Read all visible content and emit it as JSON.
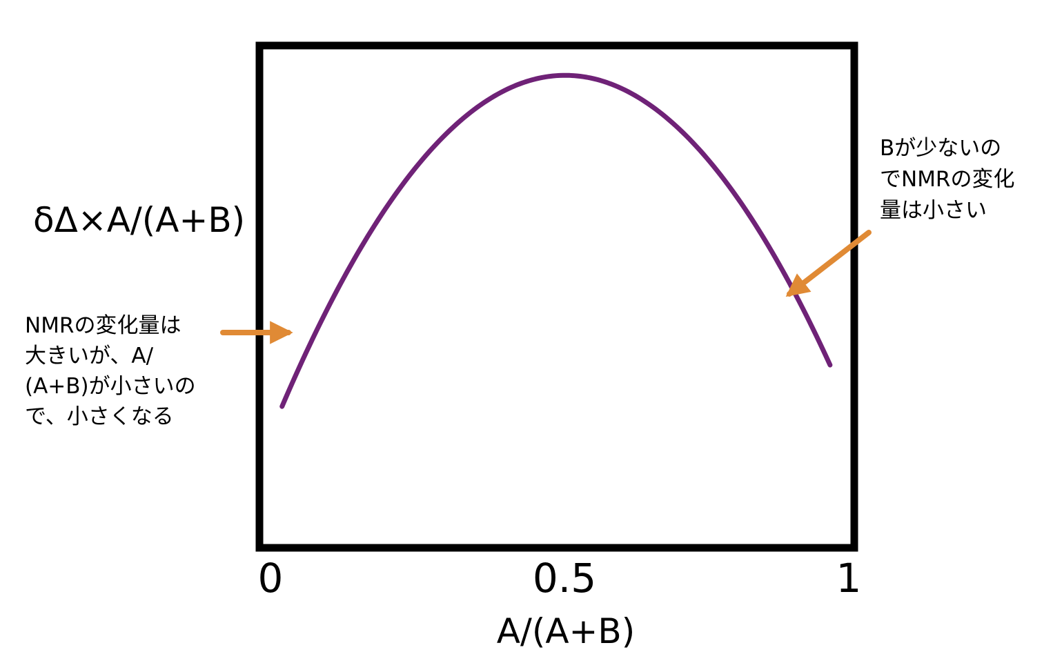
{
  "chart_data": {
    "type": "line",
    "xlabel": "A/(A+B)",
    "ylabel": "δΔ×A/(A+B)",
    "xlim": [
      0,
      1
    ],
    "ylim": [
      0,
      1
    ],
    "x_ticks": [
      "0",
      "0.5",
      "1"
    ],
    "grid": false,
    "colors": {
      "curve": "#6f2277",
      "arrow": "#e08a35",
      "frame": "#000000"
    },
    "series": [
      {
        "x": [
          0.02,
          0.1,
          0.2,
          0.3,
          0.4,
          0.5,
          0.6,
          0.7,
          0.8,
          0.9,
          0.97
        ],
        "values": [
          0.26,
          0.5,
          0.7,
          0.84,
          0.91,
          0.83,
          0.95,
          0.89,
          0.76,
          0.55,
          0.31
        ]
      }
    ],
    "annotations": [
      {
        "lines": [
          "NMRの変化量は",
          "大きいが、A/",
          "(A+B)が小さいの",
          "で、小さくなる"
        ],
        "arrow_target": {
          "x": 0.05,
          "y": 0.43
        }
      },
      {
        "lines": [
          "Bが少ないの",
          "でNMRの変化",
          "量は小さい"
        ],
        "arrow_target": {
          "x": 0.92,
          "y": 0.51
        }
      }
    ]
  }
}
